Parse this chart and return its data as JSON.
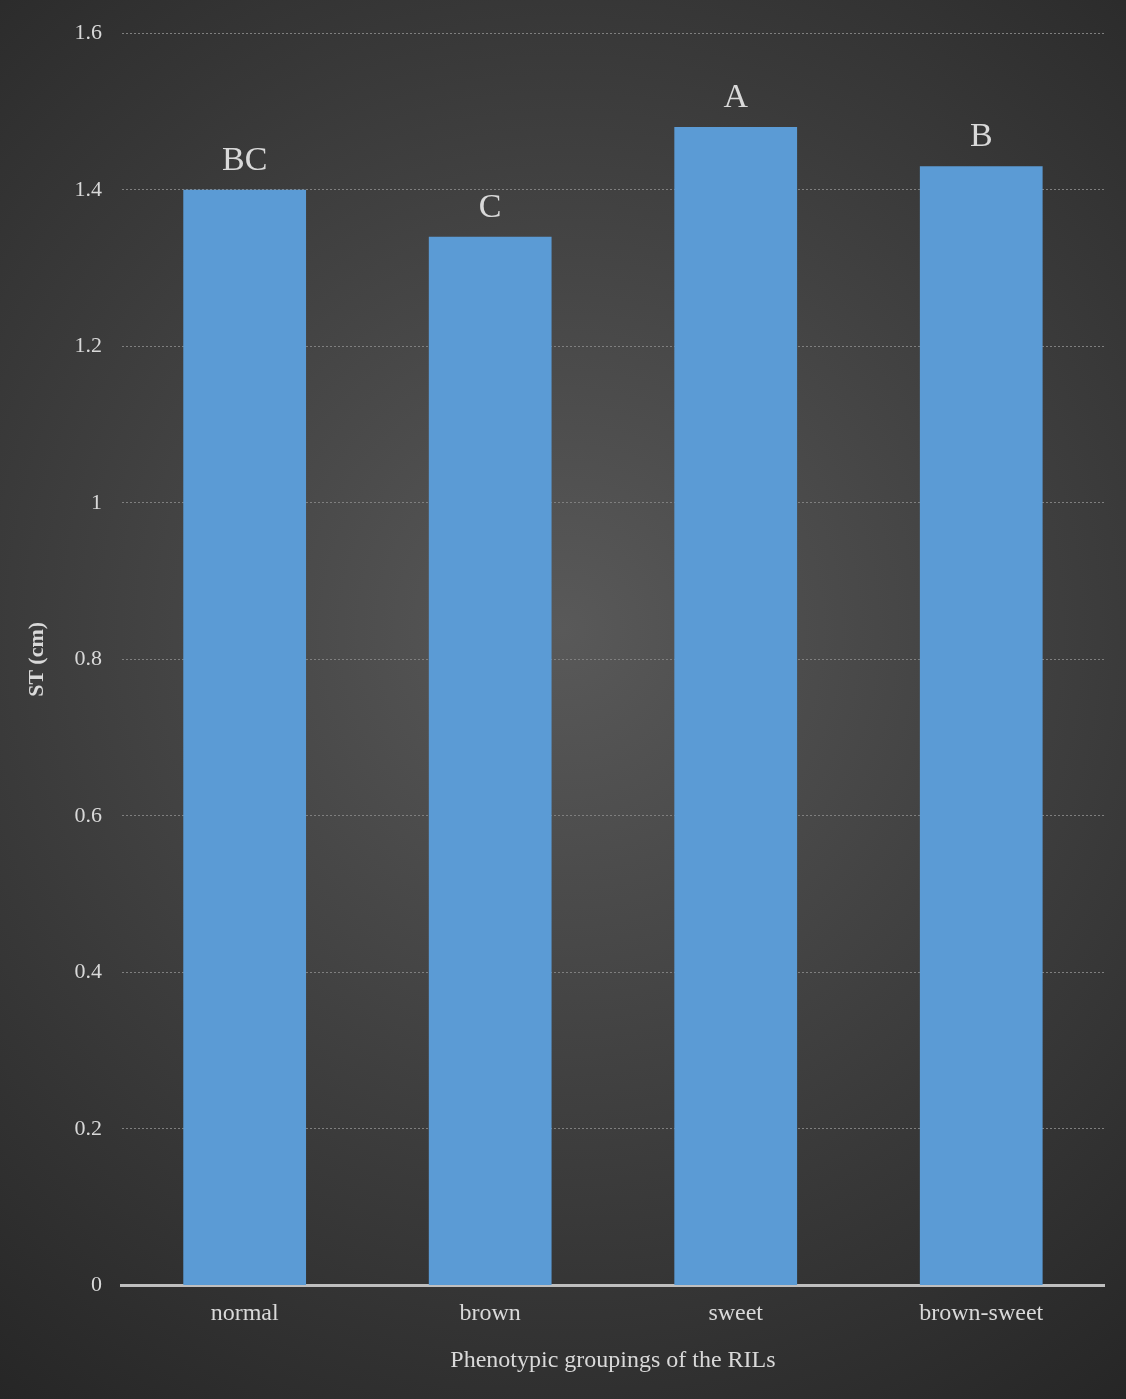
{
  "chart_data": {
    "type": "bar",
    "xlabel": "Phenotypic groupings of the RILs",
    "ylabel": "ST (cm)",
    "categories": [
      "normal",
      "brown",
      "sweet",
      "brown-sweet"
    ],
    "values": [
      1.4,
      1.34,
      1.48,
      1.43
    ],
    "color": "#5b9bd5",
    "ylim": [
      0,
      1.6
    ],
    "yticks": [
      0,
      0.2,
      0.4,
      0.6,
      0.8,
      1,
      1.2,
      1.4,
      1.6
    ],
    "grid": "y",
    "legend": false,
    "annotations": [
      {
        "text": "BC",
        "x": "normal",
        "y": 1.4
      },
      {
        "text": "C",
        "x": "brown",
        "y": 1.34
      },
      {
        "text": "A",
        "x": "sweet",
        "y": 1.48
      },
      {
        "text": "B",
        "x": "brown-sweet",
        "y": 1.43
      }
    ]
  }
}
